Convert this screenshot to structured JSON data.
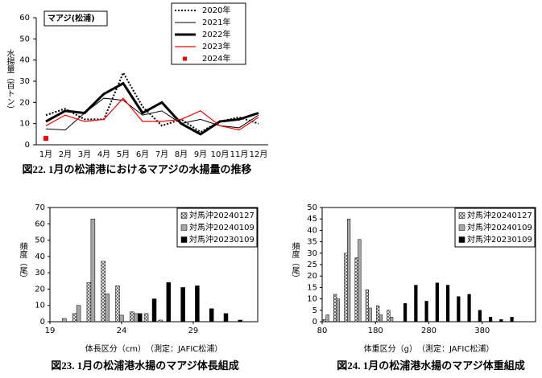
{
  "chart_data": [
    {
      "type": "line",
      "annotation": "マアジ(松浦)",
      "ylabel": "水揚量（百トン）",
      "caption": "図22. 1月の松浦港におけるマアジの水揚量の推移",
      "categories": [
        "1月",
        "2月",
        "3月",
        "4月",
        "5月",
        "6月",
        "7月",
        "8月",
        "9月",
        "10月",
        "11月",
        "12月"
      ],
      "ylim": [
        0,
        60
      ],
      "yticks": [
        0,
        10,
        20,
        30,
        40,
        50,
        60
      ],
      "series": [
        {
          "name": "2020年",
          "color": "#000000",
          "linestyle": "dotted",
          "linewidth": 2,
          "values": [
            14,
            17,
            12,
            12,
            34,
            18,
            9,
            12,
            6,
            11,
            13,
            10
          ]
        },
        {
          "name": "2021年",
          "color": "#000000",
          "linestyle": "solid",
          "linewidth": 1,
          "values": [
            7.5,
            7,
            15,
            22,
            21,
            14,
            16,
            10,
            12,
            9,
            8,
            14
          ]
        },
        {
          "name": "2022年",
          "color": "#000000",
          "linestyle": "solid",
          "linewidth": 3,
          "values": [
            11,
            16,
            15,
            24,
            29,
            15,
            20,
            10,
            5,
            11,
            12,
            15
          ]
        },
        {
          "name": "2023年",
          "color": "#ff0000",
          "linestyle": "solid",
          "linewidth": 1.2,
          "values": [
            9,
            14,
            11,
            12,
            22,
            11,
            11,
            12,
            16,
            9,
            7,
            13
          ]
        },
        {
          "name": "2024年",
          "color": "#ff0000",
          "marker": "square",
          "values": [
            3,
            null,
            null,
            null,
            null,
            null,
            null,
            null,
            null,
            null,
            null,
            null
          ]
        }
      ]
    },
    {
      "type": "bar",
      "xlabel": "体長区分（cm）　（測定：JAFIC松浦）",
      "ylabel": "頻度（尾）",
      "caption": "図23. 1月の松浦港水揚のマアジ体長組成",
      "x": [
        20,
        21,
        22,
        23,
        24,
        25,
        26,
        27,
        28,
        29,
        30,
        31,
        32
      ],
      "xlim": [
        19,
        33.5
      ],
      "xticks": [
        19,
        24,
        29
      ],
      "ylim": [
        0,
        70
      ],
      "yticks": [
        0,
        10,
        20,
        30,
        40,
        50,
        60,
        70
      ],
      "series": [
        {
          "name": "対馬沖20240127",
          "color": "#ffffff",
          "pattern": "crosshatch",
          "values": [
            0,
            5,
            24,
            37,
            22,
            6,
            5,
            1,
            0,
            0,
            0,
            0,
            0
          ]
        },
        {
          "name": "対馬沖20240109",
          "color": "#a6a6a6",
          "values": [
            2,
            10,
            63,
            17,
            4,
            5,
            0,
            0,
            0,
            0,
            0,
            0,
            0
          ]
        },
        {
          "name": "対馬沖20230109",
          "color": "#000000",
          "values": [
            0,
            0,
            0,
            0,
            0,
            5,
            14,
            24,
            21,
            22,
            8,
            5,
            1
          ]
        }
      ]
    },
    {
      "type": "bar",
      "xlabel": "体重区分（g）　（測定：JAFIC松浦）",
      "ylabel": "頻度（尾）",
      "caption": "図24. 1月の松浦港水揚のマアジ体重組成",
      "x": [
        90,
        110,
        130,
        150,
        170,
        190,
        210,
        230,
        250,
        270,
        290,
        310,
        330,
        350,
        370,
        390,
        410,
        430
      ],
      "xlim": [
        80,
        480
      ],
      "xticks": [
        80,
        180,
        280,
        380
      ],
      "ylim": [
        0,
        50
      ],
      "yticks": [
        0,
        5,
        10,
        15,
        20,
        25,
        30,
        35,
        40,
        45,
        50
      ],
      "series": [
        {
          "name": "対馬沖20240127",
          "color": "#ffffff",
          "pattern": "crosshatch",
          "values": [
            1,
            12,
            30,
            28,
            14,
            7,
            5,
            0,
            0,
            0,
            0,
            0,
            0,
            0,
            0,
            0,
            0,
            0
          ]
        },
        {
          "name": "対馬沖20240109",
          "color": "#a6a6a6",
          "values": [
            3,
            10,
            45,
            36,
            6,
            3,
            2,
            0,
            0,
            0,
            0,
            0,
            0,
            0,
            0,
            0,
            0,
            0
          ]
        },
        {
          "name": "対馬沖20230109",
          "color": "#000000",
          "values": [
            0,
            0,
            0,
            0,
            0,
            0,
            0,
            8,
            16,
            9,
            17,
            16,
            11,
            12,
            5,
            2,
            1,
            2
          ]
        }
      ]
    }
  ]
}
